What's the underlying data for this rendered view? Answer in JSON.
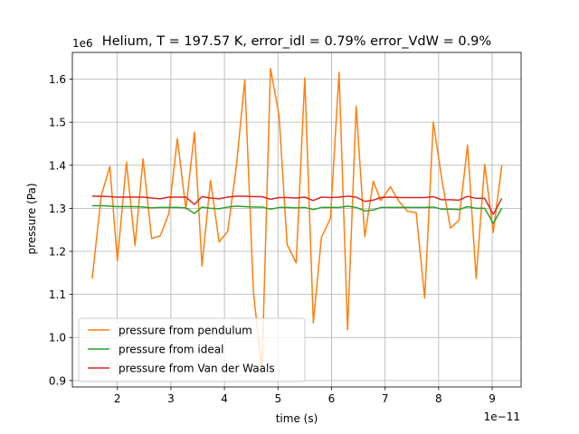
{
  "chart_data": {
    "type": "line",
    "title": "Helium, T = 197.57 K, error_idl = 0.79% error_VdW = 0.9%",
    "xlabel": "time (s)",
    "ylabel": "pressure (Pa)",
    "x_offset_label": "1e−11",
    "y_offset_label": "1e6",
    "xlim": [
      1.16,
      9.54
    ],
    "ylim": [
      0.885,
      1.662
    ],
    "x_ticks": [
      2,
      3,
      4,
      5,
      6,
      7,
      8,
      9
    ],
    "x_tick_labels": [
      "2",
      "3",
      "4",
      "5",
      "6",
      "7",
      "8",
      "9"
    ],
    "y_ticks": [
      0.9,
      1.0,
      1.1,
      1.2,
      1.3,
      1.4,
      1.5,
      1.6
    ],
    "y_tick_labels": [
      "0.9",
      "1.0",
      "1.1",
      "1.2",
      "1.3",
      "1.4",
      "1.5",
      "1.6"
    ],
    "grid": true,
    "legend_position": "lower-left",
    "series": [
      {
        "name": "pressure from pendulum",
        "color": "#ff7f0e",
        "x": [
          1.53,
          1.7,
          1.86,
          2.0,
          2.17,
          2.33,
          2.48,
          2.64,
          2.8,
          2.96,
          3.12,
          3.28,
          3.44,
          3.58,
          3.74,
          3.9,
          4.06,
          4.22,
          4.38,
          4.54,
          4.7,
          4.86,
          5.02,
          5.17,
          5.34,
          5.5,
          5.66,
          5.81,
          5.98,
          6.14,
          6.3,
          6.46,
          6.62,
          6.78,
          6.92,
          7.1,
          7.26,
          7.42,
          7.58,
          7.74,
          7.9,
          8.06,
          8.22,
          8.38,
          8.54,
          8.7,
          8.86,
          9.02,
          9.18
        ],
        "y": [
          1.137,
          1.33,
          1.397,
          1.178,
          1.407,
          1.214,
          1.415,
          1.23,
          1.236,
          1.287,
          1.462,
          1.298,
          1.477,
          1.166,
          1.365,
          1.222,
          1.246,
          1.395,
          1.598,
          1.107,
          0.922,
          1.625,
          1.515,
          1.216,
          1.173,
          1.603,
          1.034,
          1.232,
          1.277,
          1.616,
          1.018,
          1.537,
          1.234,
          1.363,
          1.318,
          1.35,
          1.316,
          1.293,
          1.29,
          1.091,
          1.5,
          1.367,
          1.254,
          1.272,
          1.447,
          1.137,
          1.402,
          1.244,
          1.4
        ]
      },
      {
        "name": "pressure from ideal",
        "color": "#2ca02c",
        "x": [
          1.53,
          1.7,
          1.86,
          2.0,
          2.17,
          2.33,
          2.48,
          2.64,
          2.8,
          2.96,
          3.12,
          3.28,
          3.44,
          3.58,
          3.74,
          3.9,
          4.06,
          4.22,
          4.38,
          4.54,
          4.7,
          4.86,
          5.02,
          5.17,
          5.34,
          5.5,
          5.66,
          5.81,
          5.98,
          6.14,
          6.3,
          6.46,
          6.62,
          6.78,
          6.92,
          7.1,
          7.26,
          7.42,
          7.58,
          7.74,
          7.9,
          8.06,
          8.22,
          8.38,
          8.54,
          8.7,
          8.86,
          9.02,
          9.18
        ],
        "y": [
          1.306,
          1.306,
          1.305,
          1.304,
          1.304,
          1.304,
          1.303,
          1.301,
          1.302,
          1.302,
          1.302,
          1.301,
          1.288,
          1.303,
          1.3,
          1.299,
          1.303,
          1.305,
          1.304,
          1.303,
          1.303,
          1.298,
          1.302,
          1.302,
          1.301,
          1.302,
          1.297,
          1.302,
          1.302,
          1.302,
          1.305,
          1.302,
          1.294,
          1.296,
          1.302,
          1.302,
          1.302,
          1.302,
          1.302,
          1.302,
          1.303,
          1.298,
          1.298,
          1.297,
          1.304,
          1.3,
          1.3,
          1.265,
          1.3
        ]
      },
      {
        "name": "pressure from Van der Waals",
        "color": "#d62728",
        "x": [
          1.53,
          1.7,
          1.86,
          2.0,
          2.17,
          2.33,
          2.48,
          2.64,
          2.8,
          2.96,
          3.12,
          3.28,
          3.44,
          3.58,
          3.74,
          3.9,
          4.06,
          4.22,
          4.38,
          4.54,
          4.7,
          4.86,
          5.02,
          5.17,
          5.34,
          5.5,
          5.66,
          5.81,
          5.98,
          6.14,
          6.3,
          6.46,
          6.62,
          6.78,
          6.92,
          7.1,
          7.26,
          7.42,
          7.58,
          7.74,
          7.9,
          8.06,
          8.22,
          8.38,
          8.54,
          8.7,
          8.86,
          9.02,
          9.18
        ],
        "y": [
          1.328,
          1.328,
          1.327,
          1.326,
          1.326,
          1.326,
          1.326,
          1.324,
          1.322,
          1.326,
          1.326,
          1.326,
          1.309,
          1.327,
          1.324,
          1.322,
          1.326,
          1.328,
          1.328,
          1.327,
          1.327,
          1.321,
          1.325,
          1.325,
          1.324,
          1.326,
          1.318,
          1.326,
          1.325,
          1.326,
          1.328,
          1.326,
          1.316,
          1.319,
          1.325,
          1.326,
          1.325,
          1.325,
          1.325,
          1.325,
          1.327,
          1.32,
          1.32,
          1.319,
          1.328,
          1.323,
          1.323,
          1.286,
          1.323
        ]
      }
    ]
  }
}
